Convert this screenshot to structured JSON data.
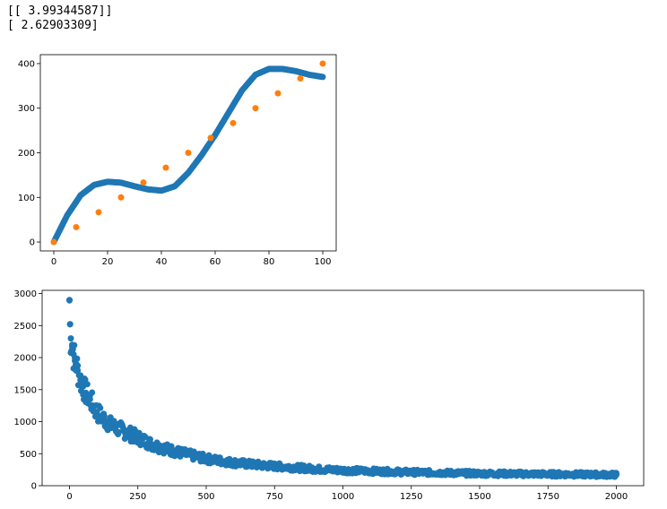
{
  "output": {
    "line1": "[[ 3.99344587]]",
    "line2": "[ 2.62903309]"
  },
  "colors": {
    "blue": "#1f77b4",
    "orange": "#ff7f0e"
  },
  "chart_data": [
    {
      "type": "scatter",
      "title": "",
      "xlabel": "",
      "ylabel": "",
      "xlim": [
        -5,
        105
      ],
      "ylim": [
        -20,
        420
      ],
      "xticks": [
        0,
        20,
        40,
        60,
        80,
        100
      ],
      "yticks": [
        0,
        100,
        200,
        300,
        400
      ],
      "grid": false,
      "series": [
        {
          "color": "#1f77b4",
          "x": [
            0,
            5,
            10,
            15,
            20,
            25,
            30,
            35,
            40,
            45,
            50,
            55,
            60,
            65,
            70,
            75,
            80,
            85,
            90,
            95,
            100
          ],
          "y": [
            0,
            60,
            105,
            128,
            135,
            133,
            125,
            118,
            115,
            125,
            155,
            195,
            240,
            290,
            340,
            375,
            388,
            388,
            383,
            375,
            370
          ]
        },
        {
          "color": "#ff7f0e",
          "x": [
            0,
            100
          ],
          "y": [
            0,
            400
          ]
        }
      ]
    },
    {
      "type": "scatter",
      "title": "",
      "xlabel": "",
      "ylabel": "",
      "xlim": [
        -100,
        2100
      ],
      "ylim": [
        0,
        3050
      ],
      "xticks": [
        0,
        250,
        500,
        750,
        1000,
        1250,
        1500,
        1750,
        2000
      ],
      "yticks": [
        0,
        500,
        1000,
        1500,
        2000,
        2500,
        3000
      ],
      "grid": false,
      "series": [
        {
          "color": "#1f77b4",
          "x": [
            0,
            2,
            5,
            10,
            15,
            20,
            25,
            30,
            40,
            50,
            60,
            75,
            100,
            125,
            150,
            200,
            250,
            300,
            350,
            400,
            500,
            600,
            700,
            800,
            900,
            1000,
            1250,
            1500,
            1750,
            2000
          ],
          "y": [
            2900,
            2520,
            2300,
            2200,
            2050,
            1950,
            1900,
            1800,
            1650,
            1550,
            1450,
            1350,
            1150,
            1050,
            950,
            850,
            750,
            650,
            580,
            520,
            420,
            360,
            320,
            290,
            260,
            240,
            210,
            190,
            180,
            170
          ]
        }
      ]
    }
  ]
}
